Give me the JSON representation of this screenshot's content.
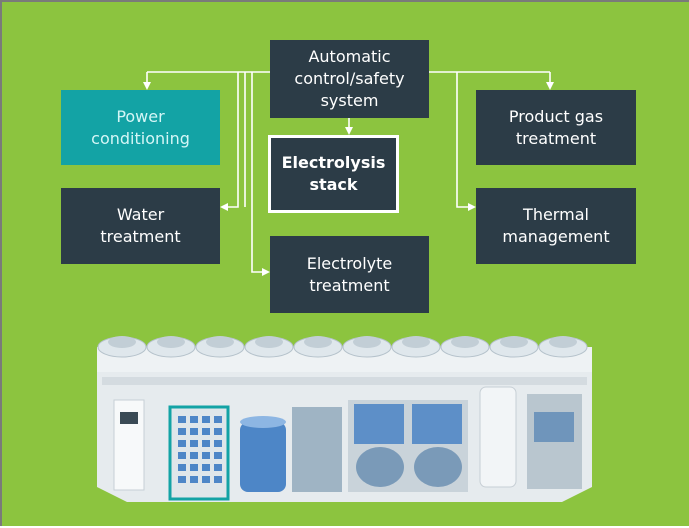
{
  "nodes": [
    {
      "lines": [
        "Automatic",
        "control/safety",
        "system"
      ]
    },
    {
      "lines": [
        "Power",
        "conditioning"
      ]
    },
    {
      "lines": [
        "Product gas",
        "treatment"
      ]
    },
    {
      "lines": [
        "Electrolysis",
        "stack"
      ]
    },
    {
      "lines": [
        "Water",
        "treatment"
      ]
    },
    {
      "lines": [
        "Thermal",
        "management"
      ]
    },
    {
      "lines": [
        "Electrolyte",
        "treatment"
      ]
    }
  ]
}
